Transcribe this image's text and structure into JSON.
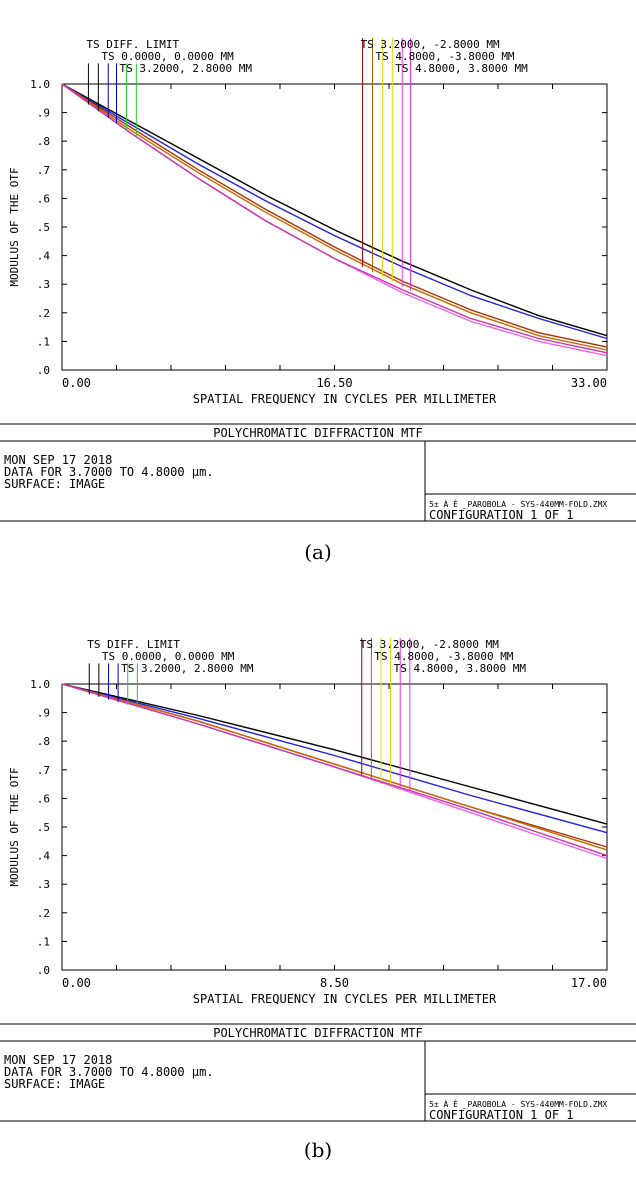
{
  "chart_data": [
    {
      "type": "line",
      "title": "POLYCHROMATIC DIFFRACTION MTF",
      "xlabel": "SPATIAL FREQUENCY IN CYCLES PER MILLIMETER",
      "ylabel": "MODULUS OF THE OTF",
      "xlim": [
        0,
        33
      ],
      "ylim": [
        0,
        1.0
      ],
      "x_ticks": [
        "0.00",
        "16.50",
        "33.00"
      ],
      "y_ticks": [
        ".0",
        ".1",
        ".2",
        ".3",
        ".4",
        ".5",
        ".6",
        ".7",
        ".8",
        ".9",
        "1.0"
      ],
      "legend_left": [
        "TS DIFF. LIMIT",
        "TS 0.0000, 0.0000 MM",
        "TS 3.2000, 2.8000 MM"
      ],
      "legend_right": [
        "TS 3.2000, -2.8000 MM",
        "TS 4.8000, -3.8000 MM",
        "TS 4.8000, 3.8000 MM"
      ],
      "x": [
        0,
        4.125,
        8.25,
        12.375,
        16.5,
        20.625,
        24.75,
        28.875,
        33
      ],
      "series": [
        {
          "color": "#000000",
          "values": [
            1.0,
            0.87,
            0.74,
            0.61,
            0.49,
            0.38,
            0.28,
            0.19,
            0.12
          ]
        },
        {
          "color": "#2222dd",
          "values": [
            1.0,
            0.86,
            0.72,
            0.59,
            0.47,
            0.36,
            0.26,
            0.18,
            0.11
          ]
        },
        {
          "color": "#aa3300",
          "values": [
            1.0,
            0.85,
            0.7,
            0.56,
            0.43,
            0.31,
            0.21,
            0.13,
            0.08
          ]
        },
        {
          "color": "#cc6600",
          "values": [
            1.0,
            0.84,
            0.69,
            0.55,
            0.42,
            0.3,
            0.2,
            0.12,
            0.07
          ]
        },
        {
          "color": "#ee66ee",
          "values": [
            1.0,
            0.83,
            0.67,
            0.52,
            0.39,
            0.27,
            0.17,
            0.1,
            0.05
          ]
        },
        {
          "color": "#cc33aa",
          "values": [
            1.0,
            0.83,
            0.67,
            0.52,
            0.39,
            0.28,
            0.18,
            0.11,
            0.06
          ]
        }
      ],
      "markers": [
        {
          "x": 1.6,
          "top": 1.03,
          "color": "#000000"
        },
        {
          "x": 2.2,
          "top": 1.03,
          "color": "#000000"
        },
        {
          "x": 2.8,
          "top": 1.03,
          "color": "#0000cc"
        },
        {
          "x": 3.3,
          "top": 1.03,
          "color": "#0000cc"
        },
        {
          "x": 3.9,
          "top": 1.03,
          "color": "#22cc22"
        },
        {
          "x": 4.5,
          "top": 1.03,
          "color": "#22cc22"
        },
        {
          "x": 18.2,
          "top": 1.07,
          "color": "#aa0000"
        },
        {
          "x": 18.8,
          "top": 1.07,
          "color": "#aa6600"
        },
        {
          "x": 19.4,
          "top": 1.07,
          "color": "#dddd00"
        },
        {
          "x": 20.0,
          "top": 1.07,
          "color": "#dddd00"
        },
        {
          "x": 20.6,
          "top": 1.07,
          "color": "#ee33ee"
        },
        {
          "x": 21.1,
          "top": 1.07,
          "color": "#ee33ee"
        }
      ],
      "footer": {
        "date": "MON SEP 17 2018",
        "data_line": "DATA FOR 3.7000 TO 4.8000 µm.",
        "surface": "SURFACE: IMAGE",
        "file": "5± À È _PAROBOLA - SYS-440MM-FOLD.ZMX",
        "config": "CONFIGURATION 1 OF 1"
      },
      "caption": "(a)"
    },
    {
      "type": "line",
      "title": "POLYCHROMATIC DIFFRACTION MTF",
      "xlabel": "SPATIAL FREQUENCY IN CYCLES PER MILLIMETER",
      "ylabel": "MODULUS OF THE OTF",
      "xlim": [
        0,
        17
      ],
      "ylim": [
        0,
        1.0
      ],
      "x_ticks": [
        "0.00",
        "8.50",
        "17.00"
      ],
      "y_ticks": [
        ".0",
        ".1",
        ".2",
        ".3",
        ".4",
        ".5",
        ".6",
        ".7",
        ".8",
        ".9",
        "1.0"
      ],
      "legend_left": [
        "TS DIFF. LIMIT",
        "TS 0.0000, 0.0000 MM",
        "TS 3.2000, 2.8000 MM"
      ],
      "legend_right": [
        "TS 3.2000, -2.8000 MM",
        "TS 4.8000, -3.8000 MM",
        "TS 4.8000, 3.8000 MM"
      ],
      "x": [
        0,
        4.25,
        8.5,
        12.75,
        17
      ],
      "series": [
        {
          "color": "#000000",
          "values": [
            1.0,
            0.89,
            0.77,
            0.64,
            0.51
          ]
        },
        {
          "color": "#2222dd",
          "values": [
            1.0,
            0.88,
            0.75,
            0.61,
            0.48
          ]
        },
        {
          "color": "#aa3300",
          "values": [
            1.0,
            0.87,
            0.72,
            0.57,
            0.43
          ]
        },
        {
          "color": "#cc6600",
          "values": [
            1.0,
            0.87,
            0.72,
            0.57,
            0.42
          ]
        },
        {
          "color": "#ee66ee",
          "values": [
            1.0,
            0.86,
            0.71,
            0.55,
            0.39
          ]
        },
        {
          "color": "#cc33aa",
          "values": [
            1.0,
            0.86,
            0.71,
            0.56,
            0.4
          ]
        }
      ],
      "markers": [
        {
          "x": 0.85,
          "top": 1.03,
          "color": "#000000"
        },
        {
          "x": 1.15,
          "top": 1.03,
          "color": "#000000"
        },
        {
          "x": 1.45,
          "top": 1.03,
          "color": "#0000cc"
        },
        {
          "x": 1.75,
          "top": 1.03,
          "color": "#0000cc"
        },
        {
          "x": 2.05,
          "top": 1.03,
          "color": "#22cc22"
        },
        {
          "x": 2.35,
          "top": 1.03,
          "color": "#22cc22"
        },
        {
          "x": 9.35,
          "top": 1.07,
          "color": "#aa0000"
        },
        {
          "x": 9.65,
          "top": 1.07,
          "color": "#aa6600"
        },
        {
          "x": 9.95,
          "top": 1.07,
          "color": "#dddd00"
        },
        {
          "x": 10.25,
          "top": 1.07,
          "color": "#dddd00"
        },
        {
          "x": 10.55,
          "top": 1.07,
          "color": "#ee33ee"
        },
        {
          "x": 10.85,
          "top": 1.07,
          "color": "#ee33ee"
        }
      ],
      "footer": {
        "date": "MON SEP 17 2018",
        "data_line": "DATA FOR 3.7000 TO 4.8000 µm.",
        "surface": "SURFACE: IMAGE",
        "file": "5± À È _PAROBOLA - SYS-440MM-FOLD.ZMX",
        "config": "CONFIGURATION 1 OF 1"
      },
      "caption": "(b)"
    }
  ]
}
